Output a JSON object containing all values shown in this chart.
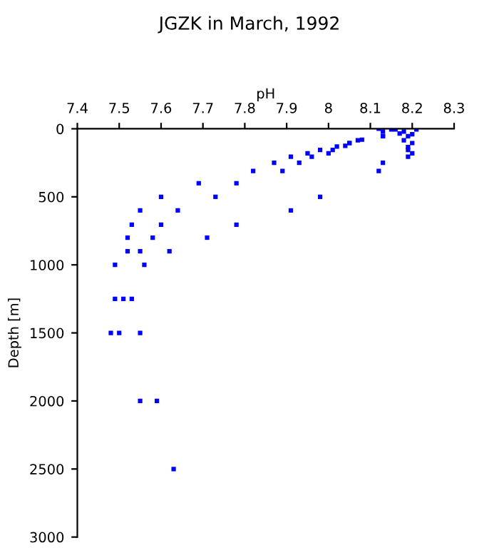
{
  "chart_data": {
    "type": "scatter",
    "title": "JGZK in March, 1992",
    "xlabel": "pH",
    "ylabel": "Depth [m]",
    "x": [
      8.12,
      8.13,
      8.13,
      8.13,
      8.15,
      8.16,
      8.17,
      8.18,
      8.19,
      8.2,
      8.21,
      8.18,
      8.2,
      8.19,
      8.19,
      8.2,
      8.19,
      8.13,
      8.12,
      8.08,
      8.07,
      8.05,
      8.05,
      8.04,
      8.02,
      8.01,
      8.0,
      7.98,
      7.96,
      7.95,
      7.93,
      7.91,
      7.89,
      7.87,
      7.82,
      7.78,
      7.69,
      7.73,
      7.98,
      7.6,
      7.55,
      7.64,
      7.91,
      7.53,
      7.6,
      7.78,
      7.52,
      7.58,
      7.71,
      7.52,
      7.55,
      7.62,
      7.49,
      7.56,
      7.49,
      7.51,
      7.53,
      7.48,
      7.5,
      7.55,
      7.55,
      7.59,
      7.63
    ],
    "values": [
      0,
      20,
      55,
      55,
      5,
      5,
      35,
      20,
      55,
      40,
      5,
      85,
      105,
      135,
      155,
      180,
      205,
      250,
      310,
      80,
      85,
      105,
      105,
      125,
      130,
      155,
      180,
      155,
      205,
      180,
      250,
      205,
      310,
      250,
      310,
      400,
      400,
      500,
      500,
      500,
      600,
      600,
      600,
      705,
      705,
      705,
      800,
      800,
      800,
      900,
      900,
      900,
      1000,
      1000,
      1250,
      1250,
      1250,
      1500,
      1500,
      1500,
      2000,
      2000,
      2500
    ],
    "color": "#0000ff",
    "marker": "square",
    "xlim": [
      7.4,
      8.3
    ],
    "xticks": [
      7.4,
      7.5,
      7.6,
      7.7,
      7.8,
      7.9,
      8,
      8.1,
      8.2,
      8.3
    ],
    "ylim": [
      3000,
      0
    ],
    "yticks": [
      0,
      500,
      1000,
      1500,
      2000,
      2500,
      3000
    ],
    "grid": false
  }
}
